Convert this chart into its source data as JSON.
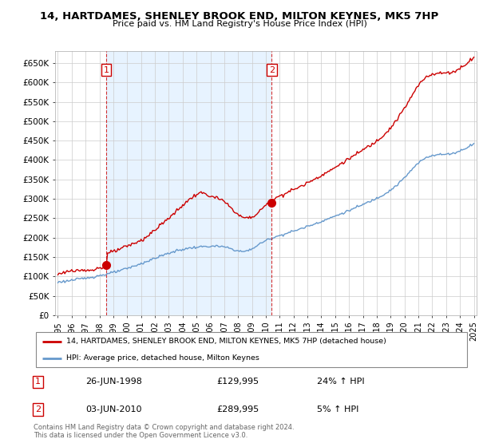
{
  "title": "14, HARTDAMES, SHENLEY BROOK END, MILTON KEYNES, MK5 7HP",
  "subtitle": "Price paid vs. HM Land Registry's House Price Index (HPI)",
  "legend_label_red": "14, HARTDAMES, SHENLEY BROOK END, MILTON KEYNES, MK5 7HP (detached house)",
  "legend_label_blue": "HPI: Average price, detached house, Milton Keynes",
  "annotation1_date": "26-JUN-1998",
  "annotation1_price": "£129,995",
  "annotation1_hpi": "24% ↑ HPI",
  "annotation2_date": "03-JUN-2010",
  "annotation2_price": "£289,995",
  "annotation2_hpi": "5% ↑ HPI",
  "footer": "Contains HM Land Registry data © Crown copyright and database right 2024.\nThis data is licensed under the Open Government Licence v3.0.",
  "red_color": "#cc0000",
  "blue_color": "#6699cc",
  "blue_fill_color": "#ddeeff",
  "grid_color": "#cccccc",
  "sale1_x": 1998.49,
  "sale1_y": 129995,
  "sale2_x": 2010.42,
  "sale2_y": 289995,
  "ylim": [
    0,
    680000
  ],
  "xlim": [
    1994.8,
    2025.2
  ],
  "yticks": [
    0,
    50000,
    100000,
    150000,
    200000,
    250000,
    300000,
    350000,
    400000,
    450000,
    500000,
    550000,
    600000,
    650000
  ]
}
